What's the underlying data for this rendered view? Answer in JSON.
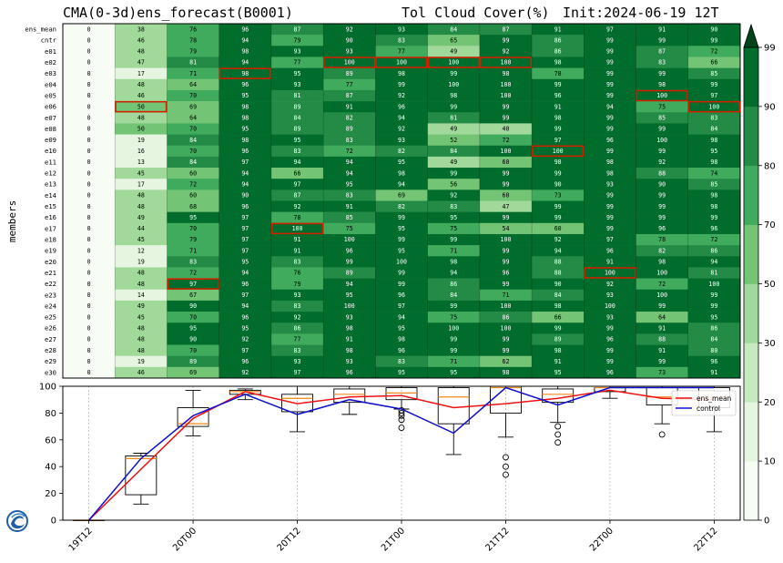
{
  "header": {
    "left_title": "CMA(0-3d)ens_forecast(B0001)",
    "mid_title": "Tol Cloud Cover(%)",
    "right_title": "Init:2024-06-19 12T"
  },
  "logo": {
    "name": "cma-logo-icon"
  },
  "chart_data": [
    {
      "type": "heatmap",
      "ylabel": "members",
      "members": [
        "ens_mean",
        "cntr",
        "e01",
        "e02",
        "e03",
        "e04",
        "e05",
        "e06",
        "e07",
        "e08",
        "e09",
        "e10",
        "e11",
        "e12",
        "e13",
        "e14",
        "e15",
        "e16",
        "e17",
        "e18",
        "e19",
        "e20",
        "e21",
        "e22",
        "e23",
        "e24",
        "e25",
        "e26",
        "e27",
        "e28",
        "e29",
        "e30"
      ],
      "values": [
        [
          0,
          38,
          76,
          96,
          87,
          92,
          93,
          84,
          87,
          91,
          97,
          91,
          90
        ],
        [
          0,
          46,
          78,
          94,
          79,
          90,
          83,
          65,
          99,
          86,
          99,
          99,
          99
        ],
        [
          0,
          48,
          79,
          98,
          93,
          93,
          77,
          49,
          92,
          86,
          99,
          87,
          72
        ],
        [
          0,
          47,
          81,
          94,
          77,
          100,
          100,
          100,
          100,
          98,
          99,
          83,
          66
        ],
        [
          0,
          17,
          71,
          98,
          95,
          89,
          98,
          99,
          98,
          78,
          99,
          99,
          85
        ],
        [
          0,
          48,
          64,
          96,
          93,
          77,
          99,
          100,
          100,
          99,
          99,
          98,
          99
        ],
        [
          0,
          46,
          70,
          95,
          81,
          87,
          92,
          98,
          100,
          96,
          99,
          100,
          97
        ],
        [
          0,
          50,
          69,
          98,
          89,
          91,
          96,
          99,
          99,
          91,
          94,
          75,
          100
        ],
        [
          0,
          48,
          64,
          98,
          84,
          82,
          94,
          81,
          99,
          98,
          99,
          85,
          83
        ],
        [
          0,
          50,
          70,
          95,
          89,
          89,
          92,
          49,
          40,
          99,
          99,
          99,
          84
        ],
        [
          0,
          19,
          84,
          98,
          95,
          83,
          93,
          52,
          72,
          97,
          96,
          100,
          98
        ],
        [
          0,
          16,
          70,
          96,
          83,
          72,
          82,
          84,
          100,
          100,
          99,
          99,
          95
        ],
        [
          0,
          13,
          84,
          97,
          94,
          94,
          95,
          49,
          60,
          98,
          98,
          92,
          98
        ],
        [
          0,
          45,
          60,
          94,
          66,
          94,
          98,
          99,
          99,
          99,
          98,
          88,
          74
        ],
        [
          0,
          17,
          72,
          94,
          97,
          95,
          94,
          56,
          99,
          90,
          93,
          90,
          85
        ],
        [
          0,
          48,
          60,
          90,
          87,
          83,
          69,
          92,
          60,
          73,
          99,
          99,
          98
        ],
        [
          0,
          48,
          68,
          96,
          92,
          91,
          82,
          83,
          47,
          99,
          99,
          99,
          98
        ],
        [
          0,
          49,
          95,
          97,
          78,
          85,
          99,
          95,
          99,
          99,
          99,
          99,
          99
        ],
        [
          0,
          44,
          70,
          97,
          100,
          75,
          95,
          75,
          54,
          60,
          99,
          96,
          96
        ],
        [
          0,
          45,
          79,
          97,
          91,
          100,
          99,
          99,
          100,
          92,
          97,
          78,
          72
        ],
        [
          0,
          12,
          71,
          97,
          91,
          96,
          95,
          71,
          99,
          94,
          96,
          82,
          86
        ],
        [
          0,
          19,
          83,
          95,
          83,
          99,
          100,
          98,
          99,
          88,
          91,
          98,
          94
        ],
        [
          0,
          48,
          72,
          94,
          76,
          89,
          99,
          94,
          96,
          88,
          100,
          100,
          81
        ],
        [
          0,
          48,
          97,
          96,
          79,
          94,
          99,
          86,
          99,
          90,
          92,
          72,
          100
        ],
        [
          0,
          14,
          67,
          97,
          93,
          95,
          96,
          84,
          71,
          84,
          93,
          100,
          99
        ],
        [
          0,
          49,
          90,
          94,
          83,
          100,
          97,
          99,
          100,
          98,
          100,
          99,
          99
        ],
        [
          0,
          45,
          70,
          96,
          92,
          93,
          94,
          75,
          86,
          66,
          93,
          64,
          95
        ],
        [
          0,
          48,
          95,
          95,
          86,
          98,
          95,
          100,
          100,
          99,
          99,
          91,
          86
        ],
        [
          0,
          48,
          90,
          92,
          77,
          91,
          98,
          99,
          99,
          89,
          96,
          88,
          84
        ],
        [
          0,
          48,
          70,
          97,
          83,
          98,
          96,
          99,
          99,
          98,
          99,
          91,
          80
        ],
        [
          0,
          19,
          89,
          96,
          93,
          93,
          83,
          71,
          62,
          91,
          99,
          99,
          96
        ],
        [
          0,
          46,
          69,
          92,
          97,
          96,
          95,
          95,
          98,
          95,
          96,
          73,
          91
        ]
      ],
      "highlights": [
        {
          "member": "e03",
          "step": 3
        },
        {
          "member": "e02",
          "step": 5
        },
        {
          "member": "e02",
          "step": 6
        },
        {
          "member": "e02",
          "step": 7
        },
        {
          "member": "e02",
          "step": 8
        },
        {
          "member": "e05",
          "step": 11
        },
        {
          "member": "e06",
          "step": 1
        },
        {
          "member": "e06",
          "step": 12
        },
        {
          "member": "e10",
          "step": 9
        },
        {
          "member": "e17",
          "step": 4
        },
        {
          "member": "e21",
          "step": 10
        },
        {
          "member": "e22",
          "step": 2
        }
      ],
      "highlight_color": "#cc2200",
      "colorbar": {
        "ticks": [
          0,
          10,
          20,
          30,
          50,
          70,
          80,
          90,
          99
        ],
        "colors": [
          "#f7fcf5",
          "#e5f5e0",
          "#c7e9c0",
          "#a1d99b",
          "#74c476",
          "#41ab5d",
          "#238b45",
          "#006d2c",
          "#00441b"
        ]
      }
    },
    {
      "type": "box_line",
      "x": [
        "19T12",
        "20T00",
        "20T12",
        "21T00",
        "21T12",
        "22T00",
        "22T12"
      ],
      "ylim": [
        0,
        100
      ],
      "yticks": [
        0,
        20,
        40,
        60,
        80,
        100
      ],
      "boxes": [
        {
          "q1": 0,
          "median": 0,
          "q3": 0,
          "whislo": 0,
          "whishi": 0,
          "fliers": []
        },
        {
          "q1": 19,
          "median": 46,
          "q3": 48,
          "whislo": 12,
          "whishi": 50,
          "fliers": []
        },
        {
          "q1": 70,
          "median": 72,
          "q3": 84,
          "whislo": 63,
          "whishi": 97,
          "fliers": []
        },
        {
          "q1": 94,
          "median": 96,
          "q3": 97,
          "whislo": 90,
          "whishi": 98,
          "fliers": []
        },
        {
          "q1": 81,
          "median": 91,
          "q3": 94,
          "whislo": 66,
          "whishi": 100,
          "fliers": []
        },
        {
          "q1": 88,
          "median": 94,
          "q3": 98,
          "whislo": 79,
          "whishi": 100,
          "fliers": []
        },
        {
          "q1": 90,
          "median": 95,
          "q3": 99,
          "whislo": 83,
          "whishi": 100,
          "fliers": [
            69,
            75,
            78,
            80,
            82
          ]
        },
        {
          "q1": 72,
          "median": 92,
          "q3": 99,
          "whislo": 49,
          "whishi": 100,
          "fliers": []
        },
        {
          "q1": 80,
          "median": 99,
          "q3": 100,
          "whislo": 62,
          "whishi": 100,
          "fliers": [
            47,
            40,
            34
          ]
        },
        {
          "q1": 88,
          "median": 94,
          "q3": 98,
          "whislo": 73,
          "whishi": 100,
          "fliers": [
            70,
            64,
            58
          ]
        },
        {
          "q1": 96,
          "median": 99,
          "q3": 99,
          "whislo": 91,
          "whishi": 100,
          "fliers": []
        },
        {
          "q1": 86,
          "median": 92,
          "q3": 99,
          "whislo": 72,
          "whishi": 100,
          "fliers": [
            64
          ]
        },
        {
          "q1": 84,
          "median": 92,
          "q3": 99,
          "whislo": 66,
          "whishi": 100,
          "fliers": []
        }
      ],
      "series": [
        {
          "name": "ens_mean",
          "color": "#ee1111",
          "values": [
            0,
            38,
            76,
            96,
            87,
            92,
            93,
            84,
            87,
            91,
            97,
            91,
            90
          ]
        },
        {
          "name": "control",
          "color": "#1111cc",
          "values": [
            0,
            46,
            78,
            94,
            79,
            90,
            83,
            65,
            99,
            86,
            99,
            99,
            99
          ]
        }
      ],
      "legend": "top-right",
      "grid": "x"
    }
  ]
}
